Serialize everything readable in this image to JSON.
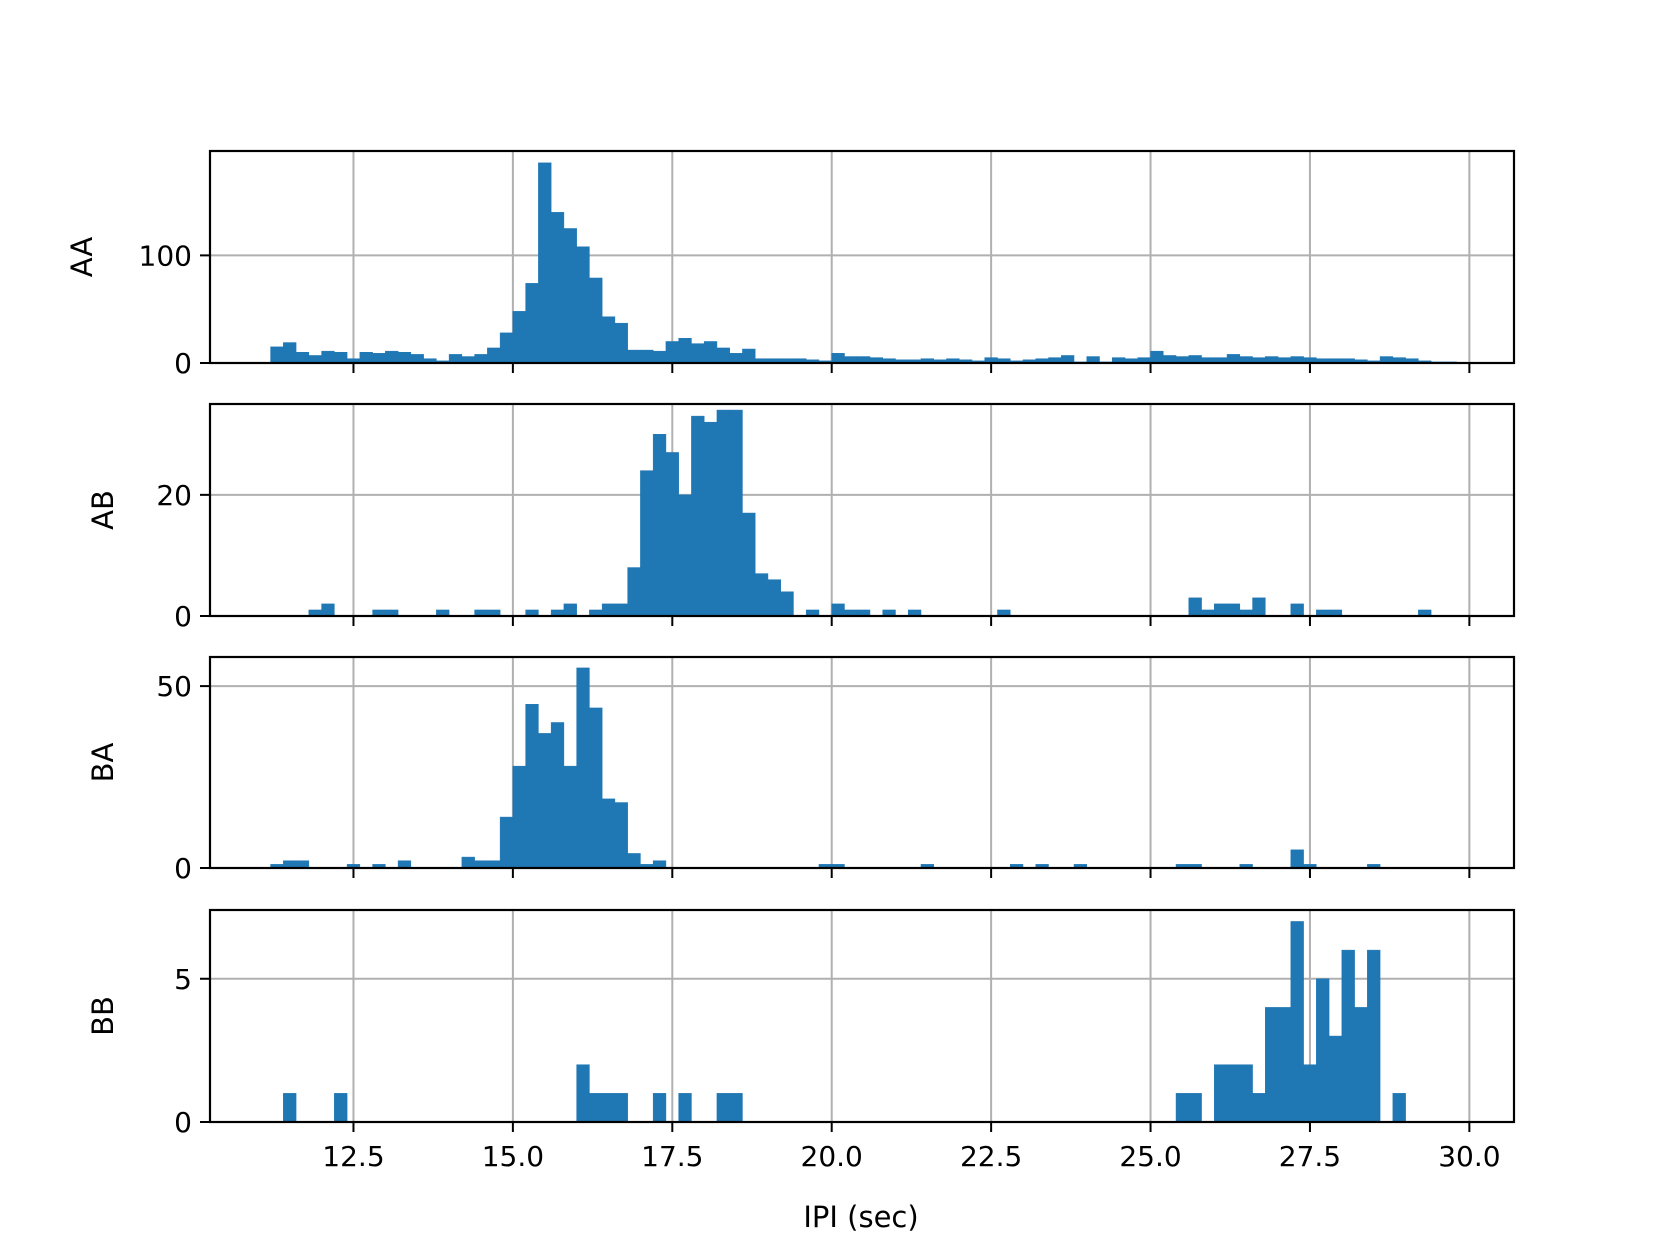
{
  "chart_data": {
    "type": "bar",
    "subtype": "histogram-stack",
    "shared_x": true,
    "xlabel": "IPI (sec)",
    "xlim": [
      10.25,
      30.7
    ],
    "bin_width": 0.2,
    "x_ticks": [
      12.5,
      15.0,
      17.5,
      20.0,
      22.5,
      25.0,
      27.5,
      30.0
    ],
    "x_tick_labels": [
      "12.5",
      "15.0",
      "17.5",
      "20.0",
      "22.5",
      "25.0",
      "27.5",
      "30.0"
    ],
    "grid": true,
    "bar_color": "#1f77b4",
    "grid_color": "#b0b0b0",
    "panels": [
      {
        "name": "AA",
        "ylabel": "AA",
        "ylim": [
          0,
          197
        ],
        "y_ticks": [
          0,
          100
        ],
        "y_tick_labels": [
          "0",
          "100"
        ],
        "x": [
          11.2,
          11.4,
          11.6,
          11.8,
          12.0,
          12.2,
          12.4,
          12.6,
          12.8,
          13.0,
          13.2,
          13.4,
          13.6,
          13.8,
          14.0,
          14.2,
          14.4,
          14.6,
          14.8,
          15.0,
          15.2,
          15.4,
          15.6,
          15.8,
          16.0,
          16.2,
          16.4,
          16.6,
          16.8,
          17.0,
          17.2,
          17.4,
          17.6,
          17.8,
          18.0,
          18.2,
          18.4,
          18.6,
          18.8,
          19.0,
          19.2,
          19.4,
          19.6,
          19.8,
          20.0,
          20.2,
          20.4,
          20.6,
          20.8,
          21.0,
          21.2,
          21.4,
          21.6,
          21.8,
          22.0,
          22.2,
          22.4,
          22.6,
          22.8,
          23.0,
          23.2,
          23.4,
          23.6,
          23.8,
          24.0,
          24.2,
          24.4,
          24.6,
          24.8,
          25.0,
          25.2,
          25.4,
          25.6,
          25.8,
          26.0,
          26.2,
          26.4,
          26.6,
          26.8,
          27.0,
          27.2,
          27.4,
          27.6,
          27.8,
          28.0,
          28.2,
          28.4,
          28.6,
          28.8,
          29.0,
          29.2,
          29.4,
          29.6
        ],
        "values": [
          15,
          19,
          10,
          7,
          11,
          10,
          4,
          10,
          9,
          11,
          10,
          8,
          4,
          2,
          8,
          6,
          8,
          14,
          28,
          48,
          74,
          186,
          140,
          125,
          108,
          79,
          43,
          37,
          12,
          12,
          11,
          20,
          23,
          18,
          20,
          14,
          9,
          13,
          4,
          4,
          4,
          4,
          3,
          2,
          9,
          6,
          6,
          5,
          4,
          3,
          3,
          4,
          3,
          4,
          3,
          2,
          5,
          4,
          2,
          3,
          4,
          5,
          7,
          1,
          6,
          1,
          5,
          4,
          5,
          11,
          7,
          6,
          7,
          5,
          5,
          8,
          6,
          5,
          6,
          5,
          6,
          5,
          4,
          4,
          4,
          3,
          2,
          6,
          5,
          4,
          2,
          1,
          1
        ]
      },
      {
        "name": "AB",
        "ylabel": "AB",
        "ylim": [
          0,
          35
        ],
        "y_ticks": [
          0,
          20
        ],
        "y_tick_labels": [
          "0",
          "20"
        ],
        "x": [
          11.8,
          12.0,
          12.8,
          13.0,
          13.8,
          14.4,
          14.6,
          15.2,
          15.6,
          15.8,
          16.2,
          16.4,
          16.6,
          16.8,
          17.0,
          17.2,
          17.4,
          17.6,
          17.8,
          18.0,
          18.2,
          18.4,
          18.6,
          18.8,
          19.0,
          19.2,
          19.6,
          20.0,
          20.2,
          20.4,
          20.8,
          21.2,
          22.6,
          25.6,
          25.8,
          26.0,
          26.2,
          26.4,
          26.6,
          27.2,
          27.6,
          27.8,
          29.2
        ],
        "values": [
          1,
          2,
          1,
          1,
          1,
          1,
          1,
          1,
          1,
          2,
          1,
          2,
          2,
          8,
          24,
          30,
          27,
          20,
          33,
          32,
          34,
          34,
          17,
          7,
          6,
          4,
          1,
          2,
          1,
          1,
          1,
          1,
          1,
          3,
          1,
          2,
          2,
          1,
          3,
          2,
          1,
          1,
          1
        ]
      },
      {
        "name": "BA",
        "ylabel": "BA",
        "ylim": [
          0,
          58
        ],
        "y_ticks": [
          0,
          50
        ],
        "y_tick_labels": [
          "0",
          "50"
        ],
        "x": [
          11.2,
          11.4,
          11.6,
          12.4,
          12.8,
          13.2,
          14.2,
          14.4,
          14.6,
          14.8,
          15.0,
          15.2,
          15.4,
          15.6,
          15.8,
          16.0,
          16.2,
          16.4,
          16.6,
          16.8,
          17.0,
          17.2,
          19.8,
          20.0,
          21.4,
          22.8,
          23.2,
          23.8,
          25.4,
          25.6,
          26.4,
          27.2,
          27.4,
          28.4
        ],
        "values": [
          1,
          2,
          2,
          1,
          1,
          2,
          3,
          2,
          2,
          14,
          28,
          45,
          37,
          40,
          28,
          55,
          44,
          19,
          18,
          4,
          1,
          2,
          1,
          1,
          1,
          1,
          1,
          1,
          1,
          1,
          1,
          5,
          1,
          1
        ]
      },
      {
        "name": "BB",
        "ylabel": "BB",
        "ylim": [
          0,
          7.4
        ],
        "y_ticks": [
          0,
          5
        ],
        "y_tick_labels": [
          "0",
          "5"
        ],
        "x": [
          11.4,
          12.2,
          16.0,
          16.2,
          16.4,
          16.6,
          17.2,
          17.6,
          18.2,
          18.4,
          25.4,
          25.6,
          26.0,
          26.2,
          26.4,
          26.6,
          26.8,
          27.0,
          27.2,
          27.4,
          27.6,
          27.8,
          28.0,
          28.2,
          28.4,
          28.8
        ],
        "values": [
          1,
          1,
          2,
          1,
          1,
          1,
          1,
          1,
          1,
          1,
          1,
          1,
          2,
          2,
          2,
          1,
          4,
          4,
          7,
          2,
          5,
          3,
          6,
          4,
          6,
          1
        ]
      }
    ]
  }
}
